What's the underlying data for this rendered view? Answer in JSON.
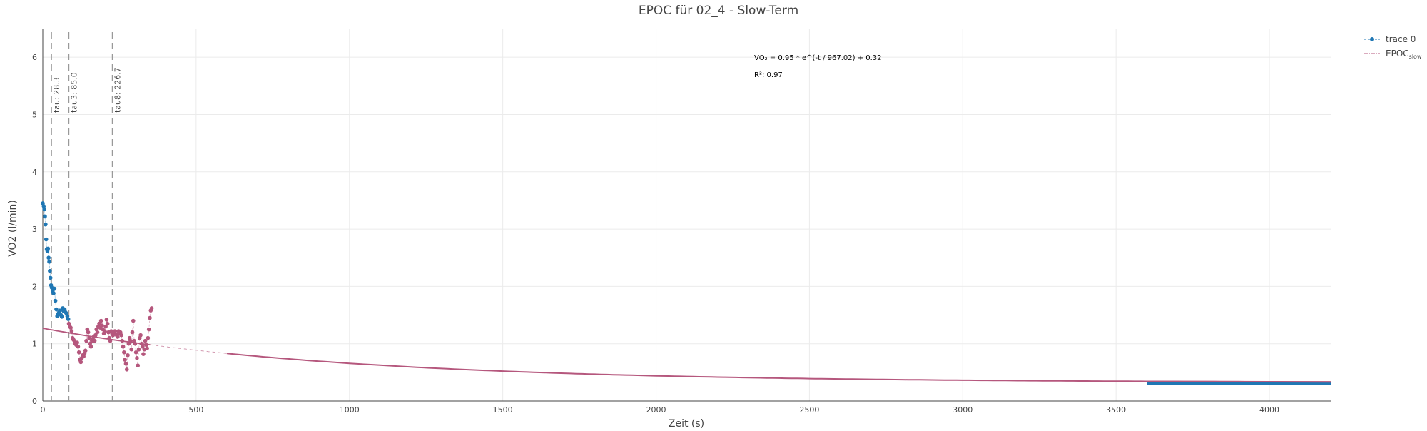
{
  "chart_data": {
    "type": "scatter",
    "title": "EPOC für 02_4 - Slow-Term",
    "xlabel": "Zeit (s)",
    "ylabel": "VO2 (l/min)",
    "xlim": [
      0,
      4200
    ],
    "ylim": [
      0,
      6.5
    ],
    "x_ticks": [
      0,
      500,
      1000,
      1500,
      2000,
      2500,
      3000,
      3500,
      4000
    ],
    "y_ticks": [
      0,
      1,
      2,
      3,
      4,
      5,
      6
    ],
    "grid": true,
    "legend_position": "top-right",
    "legend": [
      {
        "label": "trace 0",
        "sub": "",
        "color": "#1f77b4",
        "style": "markers+dash"
      },
      {
        "label": "EPOC",
        "sub": "slow",
        "color": "#b5577d",
        "style": "dashdot"
      }
    ],
    "vlines": [
      {
        "x": 28.3,
        "label": "tau: 28.3"
      },
      {
        "x": 85.0,
        "label": "tau3: 85.0"
      },
      {
        "x": 226.7,
        "label": "tau8: 226.7"
      }
    ],
    "annotations": [
      {
        "text": "VO₂ = 0.95 * e^(-t / 967.02) + 0.32",
        "x": 2320,
        "y": 6.0
      },
      {
        "text": "R²: 0.97",
        "x": 2320,
        "y": 5.7
      }
    ],
    "fit": {
      "a": 0.95,
      "tau": 967.02,
      "c": 0.32,
      "r2": 0.97
    },
    "colors": {
      "trace0": "#1f77b4",
      "epoc": "#b5577d",
      "grid": "#ebebeb",
      "vline": "#999999"
    },
    "series": [
      {
        "name": "trace 0",
        "color": "#1f77b4",
        "x": [
          0,
          3,
          5,
          7,
          9,
          11,
          13,
          15,
          17,
          19,
          21,
          23,
          25,
          27,
          29,
          32,
          35,
          38,
          41,
          44,
          47,
          50,
          53,
          56,
          59,
          62,
          65,
          68,
          71,
          74,
          77,
          80,
          83
        ],
        "y": [
          3.45,
          3.4,
          3.35,
          3.22,
          3.08,
          2.82,
          2.65,
          2.62,
          2.66,
          2.5,
          2.43,
          2.27,
          2.15,
          2.02,
          1.98,
          1.92,
          1.88,
          1.96,
          1.75,
          1.6,
          1.48,
          1.52,
          1.55,
          1.58,
          1.5,
          1.47,
          1.62,
          1.57,
          1.6,
          1.55,
          1.53,
          1.48,
          1.43
        ]
      },
      {
        "name": "",
        "color": "#b5577d",
        "x": [
          85,
          88,
          91,
          94,
          97,
          100,
          103,
          106,
          109,
          112,
          115,
          118,
          121,
          124,
          127,
          130,
          133,
          136,
          139,
          142,
          145,
          148,
          151,
          154,
          157,
          160,
          163,
          166,
          169,
          172,
          175,
          178,
          181,
          184,
          187,
          190,
          193,
          196,
          199,
          202,
          205,
          208,
          211,
          214,
          217,
          220,
          223,
          226,
          229,
          232,
          235,
          238,
          241,
          244,
          247,
          250,
          253,
          256,
          259,
          262,
          265,
          268,
          271,
          274,
          277,
          280,
          283,
          286,
          289,
          292,
          295,
          298,
          301,
          304,
          307,
          310,
          313,
          316,
          319,
          322,
          325,
          328,
          331,
          334,
          337,
          340,
          343,
          346,
          349,
          352,
          355
        ],
        "y": [
          1.35,
          1.3,
          1.28,
          1.22,
          1.1,
          1.07,
          1.05,
          1.0,
          0.98,
          1.02,
          0.95,
          0.85,
          0.72,
          0.68,
          0.75,
          0.8,
          0.78,
          0.83,
          0.88,
          1.05,
          1.25,
          1.2,
          1.1,
          1.0,
          0.95,
          1.05,
          1.08,
          1.12,
          1.05,
          1.15,
          1.25,
          1.2,
          1.3,
          1.35,
          1.28,
          1.4,
          1.32,
          1.25,
          1.18,
          1.22,
          1.3,
          1.42,
          1.35,
          1.2,
          1.1,
          1.05,
          1.22,
          1.18,
          1.15,
          1.2,
          1.22,
          1.17,
          1.15,
          1.12,
          1.22,
          1.18,
          1.2,
          1.15,
          1.05,
          0.95,
          0.85,
          0.72,
          0.65,
          0.55,
          0.8,
          1.0,
          1.1,
          1.05,
          0.9,
          1.2,
          1.4,
          1.05,
          1.0,
          0.85,
          0.75,
          0.62,
          0.9,
          1.1,
          1.15,
          1.0,
          0.95,
          0.82,
          0.9,
          1.05,
          0.98,
          0.92,
          1.1,
          1.25,
          1.45,
          1.58,
          1.62
        ]
      },
      {
        "name": "EPOC_slow",
        "color": "#b5577d",
        "fit_x_start": 600,
        "fit_x_end": 4200
      },
      {
        "name": "",
        "color": "#1f77b4",
        "x_start": 3600,
        "x_end": 4200,
        "y": 0.31
      }
    ]
  }
}
